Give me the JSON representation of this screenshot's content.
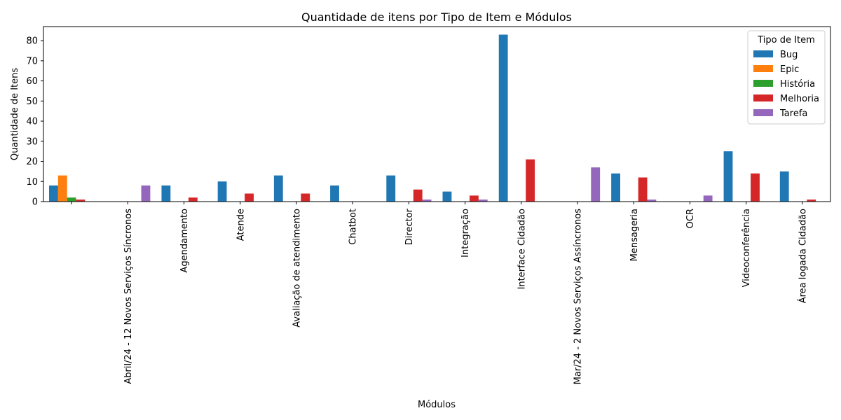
{
  "chart_data": {
    "type": "bar",
    "title": "Quantidade de itens por Tipo de Item e Módulos",
    "xlabel": "Módulos",
    "ylabel": "Quantidade de Itens",
    "ylim": [
      0,
      87
    ],
    "yticks": [
      0,
      10,
      20,
      30,
      40,
      50,
      60,
      70,
      80
    ],
    "grid": false,
    "legend": {
      "title": "Tipo de Item",
      "placement": "top-right"
    },
    "categories": [
      "",
      "Abril/24 - 12 Novos Serviços Síncronos",
      "Agendamento",
      "Atende",
      "Avaliação de atendimento",
      "Chatbot",
      "Director",
      "Integração",
      "Interface Cidadão",
      "Mar/24 - 2 Novos Serviços Assíncronos",
      "Mensageria",
      "OCR",
      "Videoconferência",
      "Área logada Cidadão"
    ],
    "series": [
      {
        "name": "Bug",
        "color": "#1f77b4",
        "values": [
          8,
          0,
          8,
          10,
          13,
          8,
          13,
          5,
          83,
          0,
          14,
          0,
          25,
          15
        ]
      },
      {
        "name": "Epic",
        "color": "#ff7f0e",
        "values": [
          13,
          0,
          0,
          0,
          0,
          0,
          0,
          0,
          0,
          0,
          0,
          0,
          0,
          0
        ]
      },
      {
        "name": "História",
        "color": "#2ca02c",
        "values": [
          2,
          0,
          0,
          0,
          0,
          0,
          0,
          0,
          0,
          0,
          0,
          0,
          0,
          0
        ]
      },
      {
        "name": "Melhoria",
        "color": "#d62728",
        "values": [
          1,
          0,
          2,
          4,
          4,
          0,
          6,
          3,
          21,
          0,
          12,
          0,
          14,
          1
        ]
      },
      {
        "name": "Tarefa",
        "color": "#9467bd",
        "values": [
          0,
          8,
          0,
          0,
          0,
          0,
          1,
          1,
          0,
          17,
          1,
          3,
          0,
          0
        ]
      }
    ]
  }
}
